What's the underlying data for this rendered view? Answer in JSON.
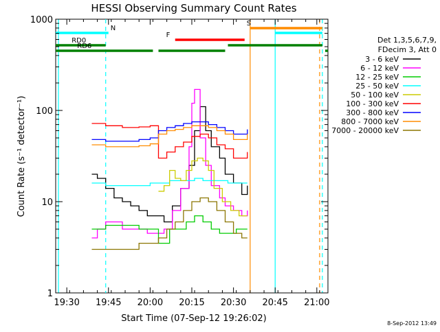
{
  "chart_data": {
    "type": "line",
    "title": "HESSI Observing Summary Count Rates",
    "xlabel": "Start Time (07-Sep-12 19:26:02)",
    "ylabel": "Count Rate (s⁻¹ detector⁻¹)",
    "y_scale": "log",
    "ylim": [
      1,
      1000
    ],
    "xlim": [
      "19:26",
      "21:04"
    ],
    "x_ticks": [
      "19:30",
      "19:45",
      "20:00",
      "20:15",
      "20:30",
      "20:45",
      "21:00"
    ],
    "y_ticks": [
      "1",
      "10",
      "100",
      "1000"
    ],
    "grid": false,
    "legend_position": "right",
    "legend_header": [
      "Det 1,3,5,6,7,9,",
      "FDecim 3, Att 0"
    ],
    "footer_timestamp": "8-Sep-2012 13:49",
    "series": [
      {
        "name": "3 - 6 keV",
        "color": "#000000",
        "x": [
          "19:39",
          "19:41",
          "19:44",
          "19:47",
          "19:50",
          "19:53",
          "19:56",
          "19:59",
          "20:02",
          "20:05",
          "20:08",
          "20:11",
          "20:14",
          "20:16",
          "20:18",
          "20:20",
          "20:22",
          "20:25",
          "20:27",
          "20:30",
          "20:33",
          "20:35"
        ],
        "values": [
          20,
          18,
          14,
          11,
          10,
          9,
          8,
          7,
          7,
          6,
          9,
          14,
          25,
          60,
          110,
          60,
          40,
          30,
          20,
          16,
          12,
          15
        ]
      },
      {
        "name": "6 - 12 keV",
        "color": "#ff00ff",
        "x": [
          "19:39",
          "19:41",
          "19:44",
          "19:47",
          "19:50",
          "19:53",
          "19:56",
          "19:59",
          "20:02",
          "20:05",
          "20:08",
          "20:11",
          "20:14",
          "20:15",
          "20:16",
          "20:18",
          "20:20",
          "20:22",
          "20:25",
          "20:27",
          "20:30",
          "20:33",
          "20:35"
        ],
        "values": [
          4,
          5,
          6,
          6,
          5,
          5,
          5,
          4.5,
          4.5,
          5,
          8,
          14,
          40,
          120,
          170,
          50,
          25,
          15,
          11,
          9,
          8,
          7,
          8
        ]
      },
      {
        "name": "12 - 25 keV",
        "color": "#00cc00",
        "x": [
          "19:39",
          "19:44",
          "19:50",
          "19:56",
          "20:00",
          "20:03",
          "20:07",
          "20:10",
          "20:13",
          "20:16",
          "20:19",
          "20:22",
          "20:25",
          "20:28",
          "20:31",
          "20:35"
        ],
        "values": [
          5,
          5.5,
          5.5,
          5,
          5,
          3.5,
          5,
          5,
          6,
          7,
          6,
          5,
          4.5,
          4.5,
          5,
          5
        ]
      },
      {
        "name": "25 - 50 keV",
        "color": "#00ffff",
        "x": [
          "19:39",
          "19:44",
          "19:50",
          "19:56",
          "20:00",
          "20:03",
          "20:07",
          "20:10",
          "20:13",
          "20:16",
          "20:19",
          "20:22",
          "20:25",
          "20:28",
          "20:31",
          "20:35"
        ],
        "values": [
          16,
          15,
          15,
          15,
          16,
          16,
          17,
          17,
          17,
          18,
          17,
          17,
          17,
          16,
          16,
          16
        ]
      },
      {
        "name": "50 - 100 keV",
        "color": "#cccc00",
        "x": [
          "20:03",
          "20:05",
          "20:07",
          "20:09",
          "20:11",
          "20:13",
          "20:15",
          "20:17",
          "20:19",
          "20:21",
          "20:23",
          "20:26",
          "20:29",
          "20:32",
          "20:35"
        ],
        "values": [
          13,
          15,
          22,
          18,
          17,
          22,
          28,
          30,
          28,
          22,
          14,
          10,
          8,
          7,
          7
        ]
      },
      {
        "name": "100 - 300 keV",
        "color": "#ff0000",
        "x": [
          "19:39",
          "19:44",
          "19:50",
          "19:56",
          "20:00",
          "20:03",
          "20:06",
          "20:09",
          "20:12",
          "20:15",
          "20:18",
          "20:21",
          "20:24",
          "20:27",
          "20:30",
          "20:33",
          "20:35"
        ],
        "values": [
          72,
          68,
          65,
          66,
          68,
          30,
          35,
          40,
          45,
          52,
          55,
          50,
          42,
          38,
          30,
          30,
          35
        ]
      },
      {
        "name": "300 - 800 keV",
        "color": "#0000ff",
        "x": [
          "19:39",
          "19:44",
          "19:50",
          "19:56",
          "20:00",
          "20:03",
          "20:06",
          "20:09",
          "20:12",
          "20:15",
          "20:18",
          "20:21",
          "20:24",
          "20:27",
          "20:30",
          "20:33",
          "20:35"
        ],
        "values": [
          48,
          46,
          46,
          48,
          50,
          60,
          65,
          68,
          72,
          75,
          75,
          70,
          65,
          60,
          55,
          55,
          62
        ]
      },
      {
        "name": "800 - 7000 keV",
        "color": "#ff8c00",
        "x": [
          "19:39",
          "19:44",
          "19:50",
          "19:56",
          "20:00",
          "20:03",
          "20:06",
          "20:09",
          "20:12",
          "20:15",
          "20:18",
          "20:21",
          "20:24",
          "20:27",
          "20:30",
          "20:33",
          "20:35"
        ],
        "values": [
          42,
          40,
          40,
          41,
          43,
          55,
          60,
          62,
          65,
          68,
          68,
          65,
          60,
          55,
          48,
          48,
          55
        ]
      },
      {
        "name": "7000 - 20000 keV",
        "color": "#8b7500",
        "x": [
          "19:39",
          "19:44",
          "19:50",
          "19:56",
          "20:00",
          "20:03",
          "20:06",
          "20:09",
          "20:12",
          "20:15",
          "20:18",
          "20:21",
          "20:24",
          "20:27",
          "20:30",
          "20:33",
          "20:35"
        ],
        "values": [
          3,
          3,
          3,
          3.5,
          3.5,
          4,
          5,
          6,
          8,
          10,
          11,
          10,
          8,
          6,
          4.5,
          4,
          4
        ]
      }
    ],
    "flag_bars": [
      {
        "label": "N",
        "color": "#00ffff",
        "segments": [
          [
            "19:26",
            "19:45"
          ],
          [
            "20:45",
            "21:02"
          ]
        ]
      },
      {
        "label": "S",
        "color": "#ff8c00",
        "segments": [
          [
            "20:36",
            "21:02"
          ]
        ]
      },
      {
        "label": "F",
        "color": "#ff0000",
        "segments": [
          [
            "20:09",
            "20:34"
          ]
        ]
      },
      {
        "label": "RD0",
        "color": "#008000",
        "segments": [
          [
            "19:26",
            "19:44"
          ],
          [
            "20:28",
            "21:02"
          ]
        ]
      },
      {
        "label": "RD6",
        "color": "#008000",
        "segments": [
          [
            "19:26",
            "20:01"
          ],
          [
            "20:03",
            "20:27"
          ],
          [
            "21:03",
            "21:04"
          ]
        ]
      }
    ],
    "markers": [
      {
        "color": "#00ffff",
        "style": "solid",
        "x": "19:27"
      },
      {
        "color": "#00ffff",
        "style": "dashed",
        "x": "19:44"
      },
      {
        "color": "#00ffff",
        "style": "solid",
        "x": "20:45"
      },
      {
        "color": "#ff8c00",
        "style": "solid",
        "x": "20:36"
      },
      {
        "color": "#ff8c00",
        "style": "dashed",
        "x": "21:01"
      },
      {
        "color": "#00ffff",
        "style": "dashed",
        "x": "21:02"
      }
    ]
  }
}
